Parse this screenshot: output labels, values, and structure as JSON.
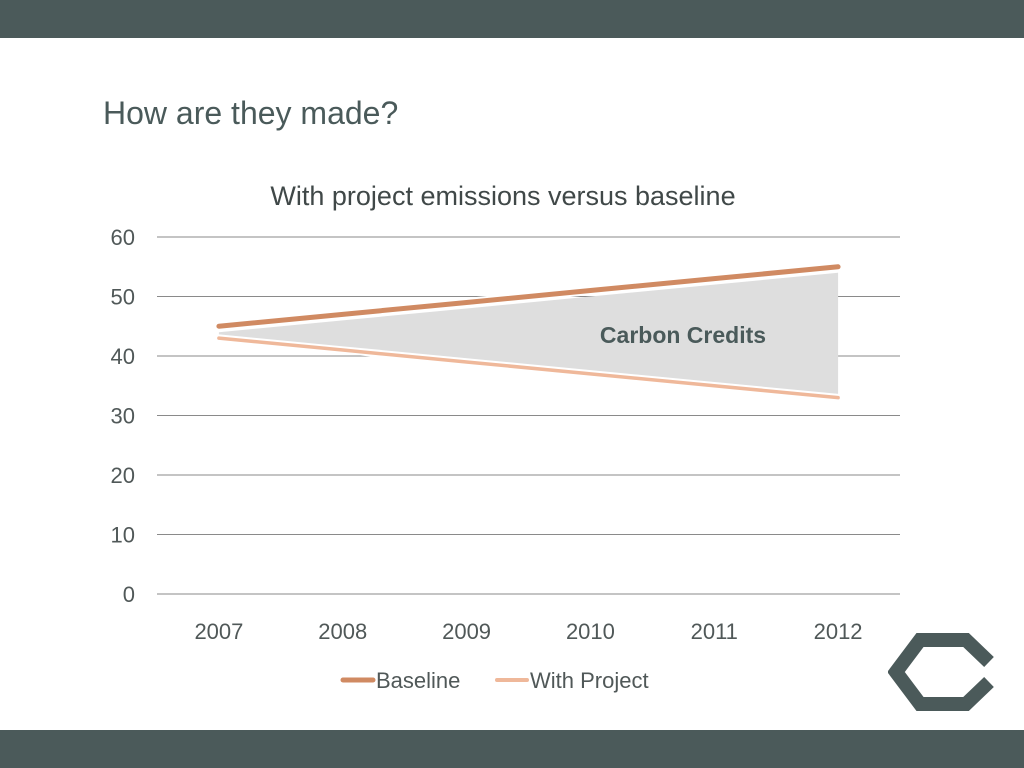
{
  "slide": {
    "title": "How are they made?",
    "colors": {
      "bar": "#4b5a5a",
      "title": "#4a5a5a",
      "logo": "#4b5a5a"
    }
  },
  "logo": {
    "icon": "hexagon-logo-icon"
  },
  "chart_data": {
    "type": "line",
    "title": "With project emissions versus baseline",
    "categories": [
      "2007",
      "2008",
      "2009",
      "2010",
      "2011",
      "2012"
    ],
    "series": [
      {
        "name": "Baseline",
        "values": [
          45,
          47,
          49,
          51,
          53,
          55
        ],
        "color": "#d08a62"
      },
      {
        "name": "With Project",
        "values": [
          43,
          41,
          39,
          37,
          35,
          33
        ],
        "color": "#efb89a"
      }
    ],
    "shaded_area": {
      "label": "Carbon Credits",
      "between": [
        "Baseline",
        "With Project"
      ],
      "color": "#dedede"
    },
    "xlabel": "",
    "ylabel": "",
    "ylim": [
      0,
      60
    ],
    "yticks": [
      0,
      10,
      20,
      30,
      40,
      50,
      60
    ],
    "grid": true,
    "legend": "bottom"
  }
}
